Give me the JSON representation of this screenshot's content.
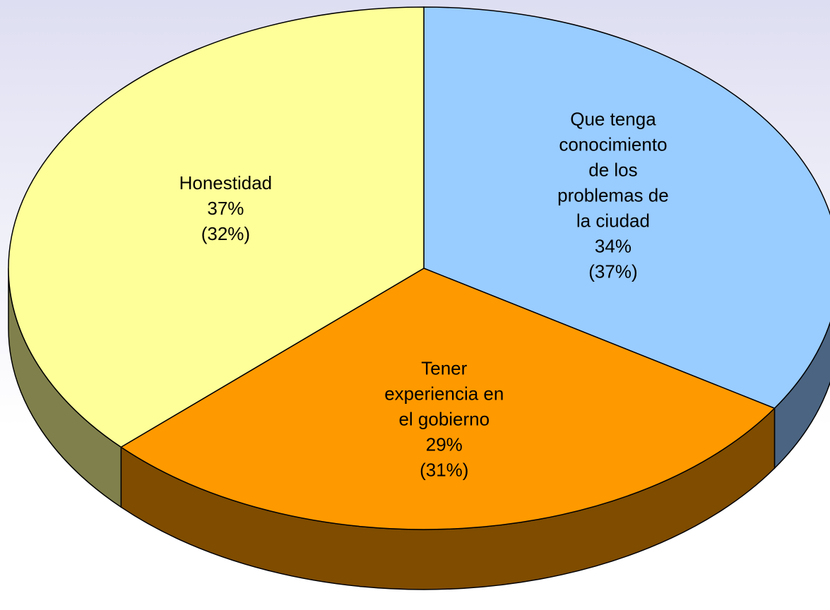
{
  "chart_data": {
    "type": "pie3d",
    "categories": [
      "Que tenga\nconocimiento\nde los\nproblemas de\nla ciudad",
      "Tener\nexperiencia en\nel gobierno",
      "Honestidad"
    ],
    "values": [
      34,
      29,
      37
    ],
    "value_labels": [
      "34%",
      "29%",
      "37%"
    ],
    "secondary_labels": [
      "(37%)",
      "(31%)",
      "(32%)"
    ],
    "colors": [
      "#99ccff",
      "#ff9900",
      "#ffff99"
    ],
    "side_colors": [
      "#4a6482",
      "#7f4c00",
      "#80804c"
    ]
  }
}
